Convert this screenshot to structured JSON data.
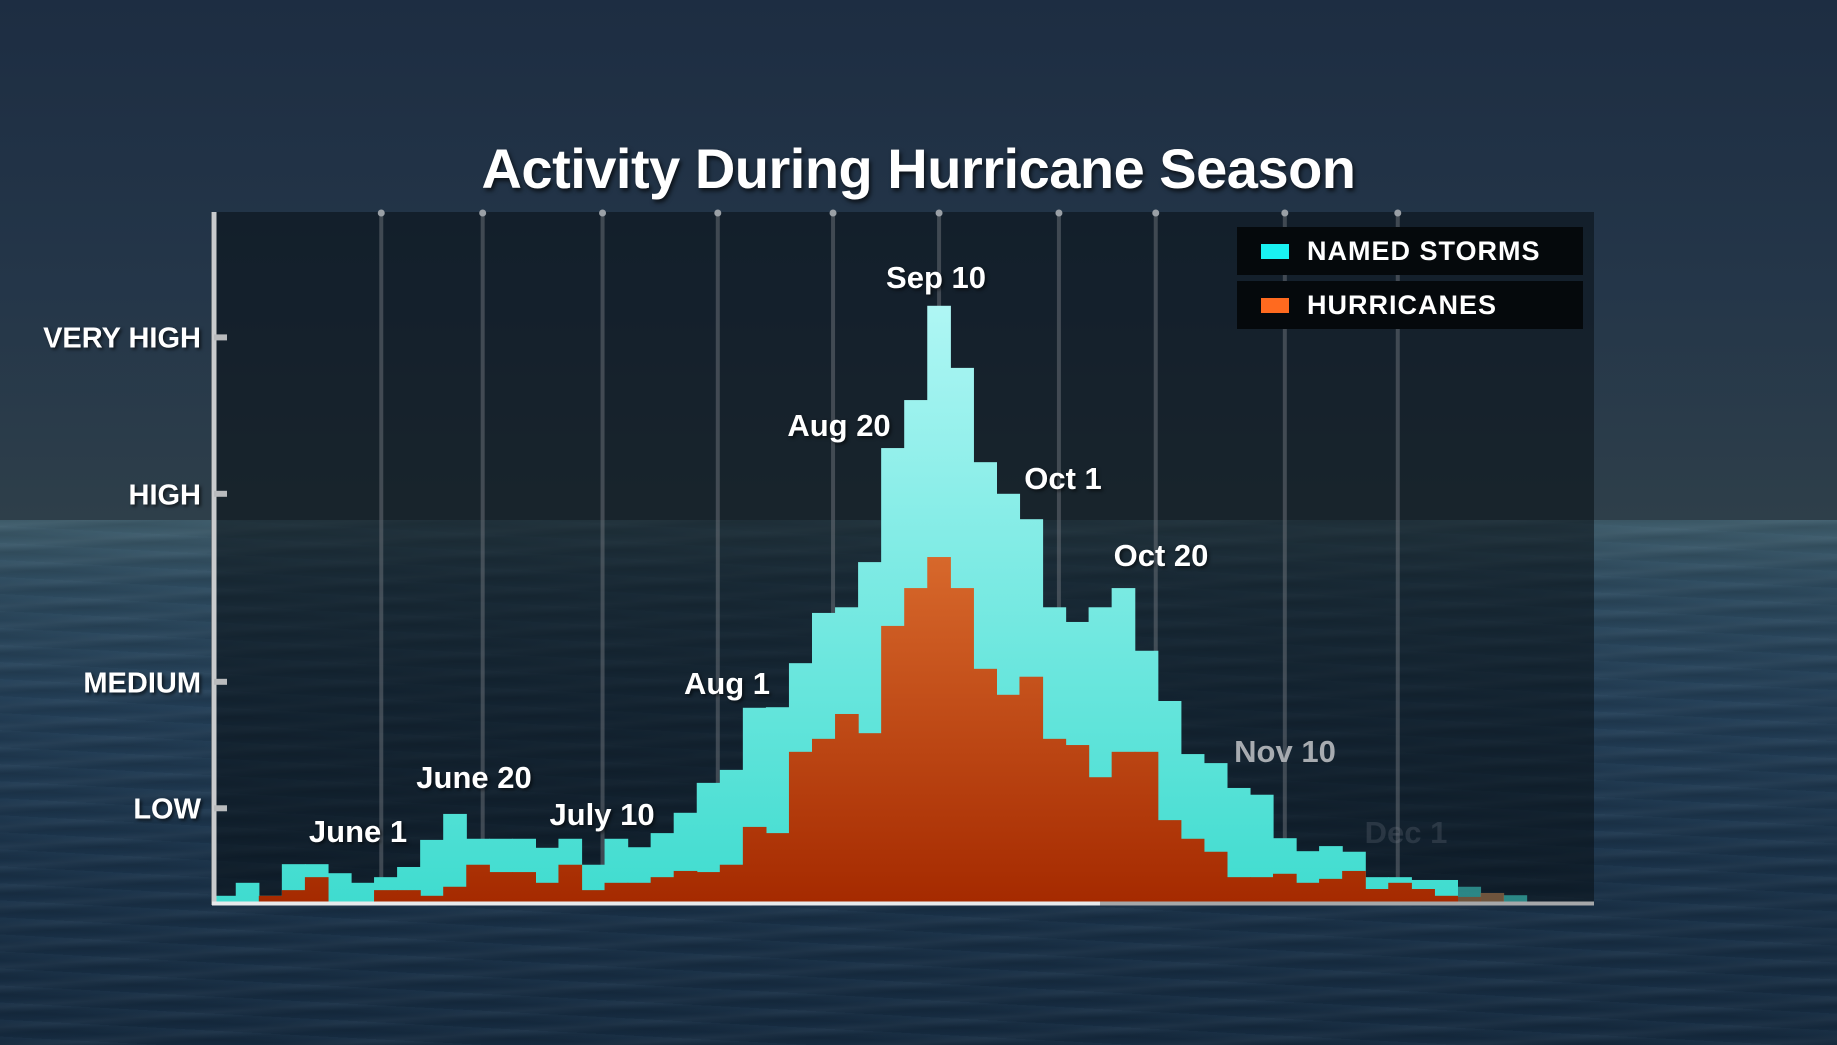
{
  "chart_data": {
    "type": "bar",
    "subtype": "overlapping-stepped-histogram",
    "title": "Activity During Hurricane Season",
    "xlabel": "",
    "ylabel": "",
    "y_scale_note": "Activity index; VERY HIGH = 100",
    "ylim": [
      0,
      110
    ],
    "y_ticks": [
      {
        "label": "LOW",
        "value": 16.6
      },
      {
        "label": "MEDIUM",
        "value": 39.0
      },
      {
        "label": "HIGH",
        "value": 72.3
      },
      {
        "label": "VERY HIGH",
        "value": 100
      }
    ],
    "x_bins": 57,
    "date_markers": [
      {
        "label": "June 1",
        "bin": 7.3,
        "style": "normal"
      },
      {
        "label": "June 20",
        "bin": 11.7,
        "style": "normal"
      },
      {
        "label": "July 10",
        "bin": 16.9,
        "style": "normal"
      },
      {
        "label": "Aug 1",
        "bin": 21.9,
        "style": "normal"
      },
      {
        "label": "Aug 20",
        "bin": 26.9,
        "style": "normal"
      },
      {
        "label": "Sep 10",
        "bin": 31.5,
        "style": "normal"
      },
      {
        "label": "Oct 1",
        "bin": 36.7,
        "style": "normal"
      },
      {
        "label": "Oct 20",
        "bin": 40.9,
        "style": "normal"
      },
      {
        "label": "Nov 10",
        "bin": 46.5,
        "style": "dim"
      },
      {
        "label": "Dec 1",
        "bin": 51.4,
        "style": "faint"
      }
    ],
    "grid": "vertical lines at date markers",
    "legend_position": "top-right",
    "faded_bins_from": 54,
    "series": [
      {
        "name": "NAMED STORMS",
        "color": "#19f2f2",
        "fill_top": "#aef6f4",
        "fill_bottom": "#3fdccf",
        "values": [
          1.1,
          3.4,
          1.1,
          6.7,
          6.7,
          5.1,
          3.4,
          4.4,
          6.2,
          11.0,
          15.6,
          11.2,
          11.2,
          11.2,
          9.6,
          11.2,
          6.6,
          11.2,
          9.7,
          12.2,
          15.8,
          21.1,
          23.4,
          34.4,
          34.5,
          42.3,
          51.2,
          52.2,
          60.2,
          80.4,
          88.9,
          105.6,
          94.6,
          77.9,
          72.3,
          67.8,
          52.2,
          49.6,
          52.2,
          55.6,
          44.5,
          35.6,
          26.2,
          24.6,
          20.2,
          19.0,
          11.3,
          9.0,
          9.9,
          8.9,
          4.4,
          4.4,
          3.9,
          3.9,
          2.7,
          1.6,
          1.2
        ]
      },
      {
        "name": "HURRICANES",
        "color": "#ff6a1f",
        "fill_top": "#d8692c",
        "fill_bottom": "#a52a00",
        "values": [
          0,
          0,
          1.1,
          2.1,
          4.4,
          0,
          0,
          2.1,
          2.1,
          1.1,
          2.7,
          6.6,
          5.3,
          5.3,
          3.4,
          6.6,
          2.1,
          3.4,
          3.4,
          4.4,
          5.5,
          5.3,
          6.6,
          13.3,
          12.2,
          26.6,
          28.9,
          33.3,
          29.9,
          48.9,
          55.6,
          61.1,
          55.6,
          41.3,
          36.7,
          39.9,
          28.9,
          27.8,
          22.1,
          26.6,
          26.6,
          14.5,
          11.2,
          8.9,
          4.4,
          4.4,
          5.0,
          3.4,
          4.1,
          5.5,
          2.3,
          3.4,
          2.3,
          1.1,
          0.9,
          1.6,
          0
        ]
      }
    ]
  }
}
